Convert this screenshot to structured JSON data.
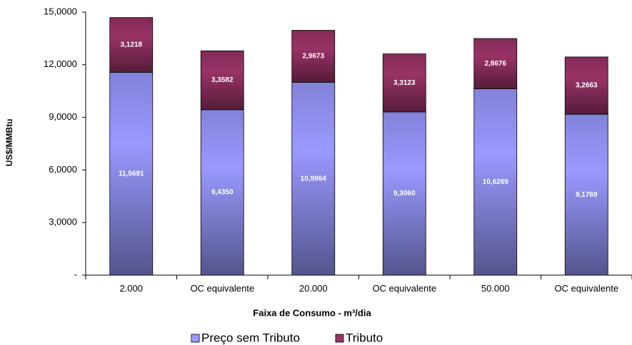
{
  "chart_data": {
    "type": "stacked-bar",
    "y_label": "US$/MMBtu",
    "x_label": "Faixa de Consumo  - m³/dia",
    "categories": [
      "2.000",
      "OC equivalente",
      "20.000",
      "OC equivalente",
      "50.000",
      "OC equivalente"
    ],
    "series": [
      {
        "name": "Preço sem Tributo",
        "color": "#9999ff",
        "values": [
          11.5691,
          9.435,
          10.9964,
          9.306,
          10.6269,
          9.1769
        ],
        "value_labels": [
          "11,5691",
          "9,4350",
          "10,9964",
          "9,3060",
          "10,6269",
          "9,1769"
        ]
      },
      {
        "name": "Tributo",
        "color": "#993366",
        "values": [
          3.1218,
          3.3582,
          2.9673,
          3.3123,
          2.8676,
          3.2663
        ],
        "value_labels": [
          "3,1218",
          "3,3582",
          "2,9673",
          "3,3123",
          "2,8676",
          "3,2663"
        ]
      }
    ],
    "ylim": [
      0,
      15
    ],
    "yticks": [
      {
        "value": 0,
        "label": "-"
      },
      {
        "value": 3,
        "label": "3,0000"
      },
      {
        "value": 6,
        "label": "6,0000"
      },
      {
        "value": 9,
        "label": "9,0000"
      },
      {
        "value": 12,
        "label": "12,0000"
      },
      {
        "value": 15,
        "label": "15,0000"
      }
    ]
  }
}
